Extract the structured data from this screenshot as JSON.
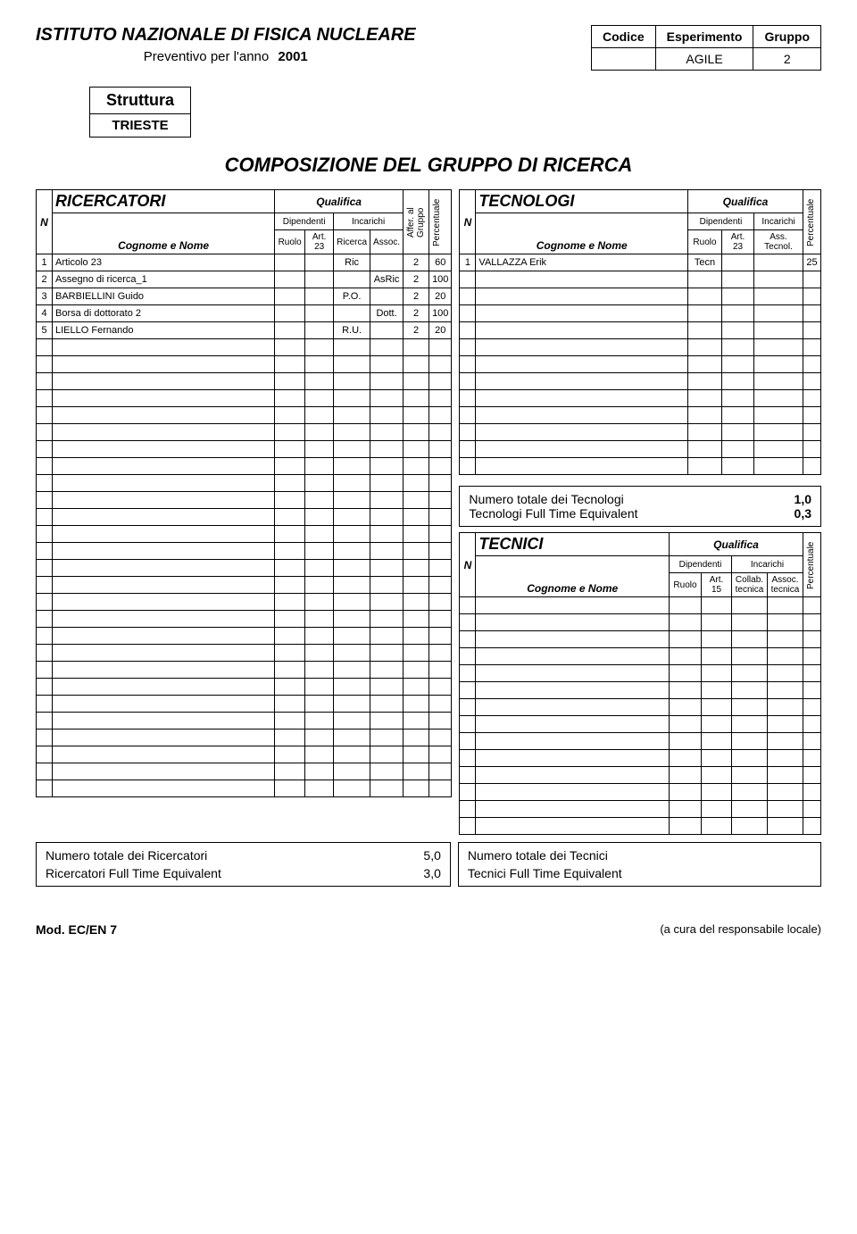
{
  "header": {
    "org": "ISTITUTO NAZIONALE DI FISICA NUCLEARE",
    "subtitle": "Preventivo per l'anno",
    "year": "2001",
    "info": {
      "headers": [
        "Codice",
        "Esperimento",
        "Gruppo"
      ],
      "experiment": "AGILE",
      "group": "2"
    },
    "struttura_label": "Struttura",
    "struttura_value": "TRIESTE"
  },
  "main_title": "COMPOSIZIONE DEL GRUPPO DI RICERCA",
  "labels": {
    "qualifica": "Qualifica",
    "dipendenti": "Dipendenti",
    "incarichi": "Incarichi",
    "ruolo": "Ruolo",
    "art23": "Art. 23",
    "art15": "Art. 15",
    "ricerca": "Ricerca",
    "assoc": "Assoc.",
    "ass_tecnol": "Ass. Tecnol.",
    "collab_tecnica": "Collab. tecnica",
    "assoc_tecnica": "Assoc. tecnica",
    "affer": "Affer. al Gruppo",
    "percentuale": "Percentuale",
    "cognome": "Cognome e Nome",
    "N": "N"
  },
  "ricercatori": {
    "title": "RICERCATORI",
    "rows": [
      {
        "n": "1",
        "nome": "Articolo 23",
        "ruolo": "",
        "art23": "",
        "ricerca": "Ric",
        "assoc": "",
        "affer": "2",
        "perc": "60"
      },
      {
        "n": "2",
        "nome": "Assegno di ricerca_1",
        "ruolo": "",
        "art23": "",
        "ricerca": "",
        "assoc": "AsRic",
        "affer": "2",
        "perc": "100"
      },
      {
        "n": "3",
        "nome": "BARBIELLINI  Guido",
        "ruolo": "",
        "art23": "",
        "ricerca": "P.O.",
        "assoc": "",
        "affer": "2",
        "perc": "20"
      },
      {
        "n": "4",
        "nome": "Borsa di dottorato 2",
        "ruolo": "",
        "art23": "",
        "ricerca": "",
        "assoc": "Dott.",
        "affer": "2",
        "perc": "100"
      },
      {
        "n": "5",
        "nome": "LIELLO  Fernando",
        "ruolo": "",
        "art23": "",
        "ricerca": "R.U.",
        "assoc": "",
        "affer": "2",
        "perc": "20"
      }
    ],
    "empty_rows": 27,
    "summary": {
      "l1": "Numero totale dei Ricercatori",
      "v1": "5,0",
      "l2": "Ricercatori Full Time Equivalent",
      "v2": "3,0"
    }
  },
  "tecnologi": {
    "title": "TECNOLOGI",
    "rows": [
      {
        "n": "1",
        "nome": "VALLAZZA   Erik",
        "ruolo": "Tecn",
        "art23": "",
        "ass": "",
        "perc": "25"
      }
    ],
    "empty_rows": 12,
    "summary": {
      "l1": "Numero totale dei Tecnologi",
      "v1": "1,0",
      "l2": "Tecnologi Full Time Equivalent",
      "v2": "0,3"
    }
  },
  "tecnici": {
    "title": "TECNICI",
    "empty_rows": 14,
    "summary": {
      "l1": "Numero totale dei Tecnici",
      "v1": "",
      "l2": "Tecnici Full Time Equivalent",
      "v2": ""
    }
  },
  "footer": {
    "mod": "Mod. EC/EN 7",
    "note": "(a cura del responsabile locale)"
  }
}
